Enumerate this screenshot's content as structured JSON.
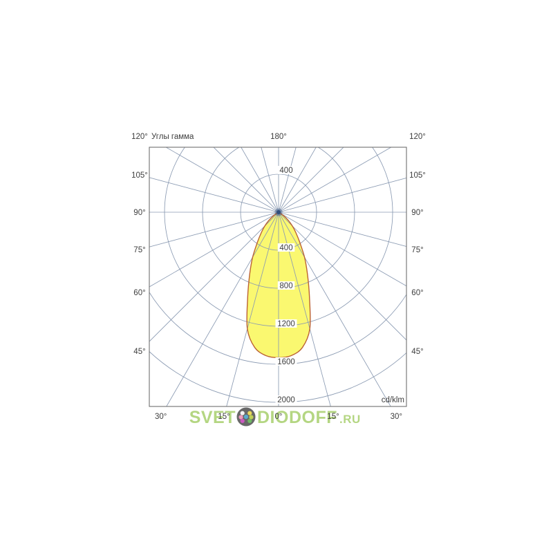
{
  "header": {
    "corner_left": "120°",
    "title": "Углы гамма",
    "top_center": "180°",
    "corner_right": "120°"
  },
  "axes": {
    "side_labels": [
      "105°",
      "90°",
      "75°",
      "60°",
      "45°"
    ],
    "side_gammas_deg": [
      105,
      90,
      75,
      60,
      45
    ],
    "bottom_labels": [
      "30°",
      "15°",
      "0°",
      "15°",
      "30°"
    ],
    "bottom_gammas_deg": [
      -30,
      -15,
      0,
      15,
      30
    ],
    "units_label": "cd/klm"
  },
  "chart_data": {
    "type": "polar",
    "subtype": "photometric-luminous-intensity-distribution",
    "title": "Углы гамма",
    "units": "cd/klm",
    "radial_ticks": [
      400,
      800,
      1200,
      1600,
      2000
    ],
    "radial_tick_top": 400,
    "radial_max": 2000,
    "angle_grid_step_deg": 15,
    "angle_labels_top": [
      "120°",
      "180°",
      "120°"
    ],
    "angle_labels_sides": [
      "105°",
      "90°",
      "75°",
      "60°",
      "45°"
    ],
    "angle_labels_bottom": [
      "30°",
      "15°",
      "0°",
      "15°",
      "30°"
    ],
    "grid": "on",
    "series": [
      {
        "name": "luminous-intensity-curve",
        "gamma_deg": [
          0,
          5,
          10,
          15,
          20,
          25,
          30,
          35,
          40,
          45,
          50,
          55,
          60
        ],
        "values_cd_per_klm": [
          1530,
          1515,
          1445,
          1270,
          950,
          720,
          545,
          390,
          285,
          205,
          135,
          65,
          0
        ],
        "peak_cd_per_klm": 1530,
        "symmetric": true
      }
    ]
  },
  "watermark": {
    "prefix": "SVET",
    "suffix": "DIODOFF",
    "tld": ".RU",
    "logo_dot_colors": [
      "#f2f2f2",
      "#e6d23c",
      "#e887ae",
      "#3c9ec8",
      "#b4c83c",
      "#c23cb4",
      "#58b04a"
    ]
  },
  "colors": {
    "background": "#ffffff",
    "grid": "#8a9ab2",
    "plot_border": "#6f6f6f",
    "text": "#3d3d3d",
    "curve_fill": "#faf870",
    "curve_stroke": "#bb6233",
    "origin_dot": "#2f4e7c",
    "watermark_green": "#a8cf6d",
    "logo_bg": "#4e4e4e"
  }
}
